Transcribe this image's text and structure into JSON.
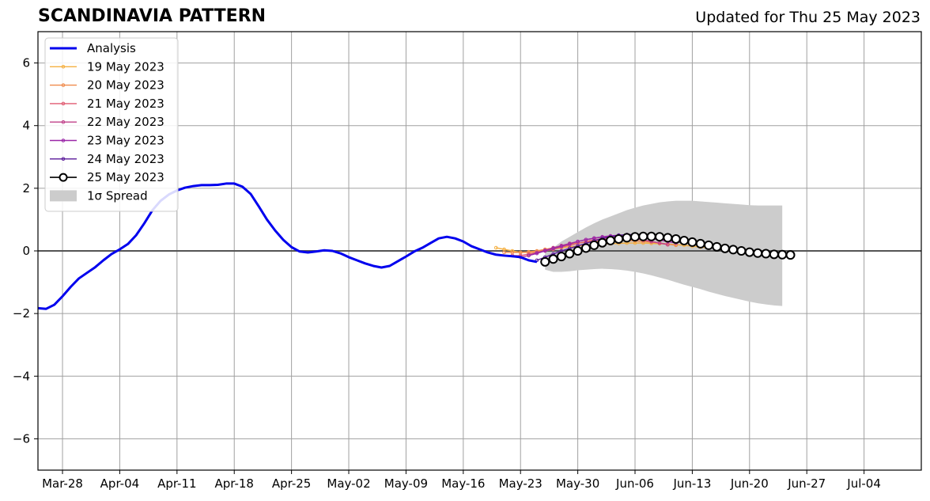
{
  "header": {
    "title": "SCANDINAVIA PATTERN",
    "updated": "Updated for Thu 25 May 2023"
  },
  "chart_data": {
    "type": "line",
    "title": "SCANDINAVIA PATTERN",
    "subtitle": "Updated for Thu 25 May 2023",
    "xlabel": "",
    "ylabel": "",
    "x_range": [
      "2023-03-25",
      "2023-07-11"
    ],
    "ylim": [
      -7,
      7
    ],
    "y_ticks": [
      -6,
      -4,
      -2,
      0,
      2,
      4,
      6
    ],
    "y_tick_labels": [
      "−6",
      "−4",
      "−2",
      "0",
      "2",
      "4",
      "6"
    ],
    "x_ticks": [
      "2023-03-28",
      "2023-04-04",
      "2023-04-11",
      "2023-04-18",
      "2023-04-25",
      "2023-05-02",
      "2023-05-09",
      "2023-05-16",
      "2023-05-23",
      "2023-05-30",
      "2023-06-06",
      "2023-06-13",
      "2023-06-20",
      "2023-06-27",
      "2023-07-04"
    ],
    "x_tick_labels": [
      "Mar-28",
      "Apr-04",
      "Apr-11",
      "Apr-18",
      "Apr-25",
      "May-02",
      "May-09",
      "May-16",
      "May-23",
      "May-30",
      "Jun-06",
      "Jun-13",
      "Jun-20",
      "Jun-27",
      "Jul-04"
    ],
    "grid": true,
    "legend_position": "top-left",
    "colors": {
      "analysis": "#0000ee",
      "spread": "#cccccc",
      "grid": "#a0a0a0",
      "zero_line": "#555555"
    },
    "analysis": {
      "name": "Analysis",
      "color": "#0000ee",
      "x": [
        "2023-03-25",
        "2023-03-26",
        "2023-03-27",
        "2023-03-28",
        "2023-03-29",
        "2023-03-30",
        "2023-03-31",
        "2023-04-01",
        "2023-04-02",
        "2023-04-03",
        "2023-04-04",
        "2023-04-05",
        "2023-04-06",
        "2023-04-07",
        "2023-04-08",
        "2023-04-09",
        "2023-04-10",
        "2023-04-11",
        "2023-04-12",
        "2023-04-13",
        "2023-04-14",
        "2023-04-15",
        "2023-04-16",
        "2023-04-17",
        "2023-04-18",
        "2023-04-19",
        "2023-04-20",
        "2023-04-21",
        "2023-04-22",
        "2023-04-23",
        "2023-04-24",
        "2023-04-25",
        "2023-04-26",
        "2023-04-27",
        "2023-04-28",
        "2023-04-29",
        "2023-04-30",
        "2023-05-01",
        "2023-05-02",
        "2023-05-03",
        "2023-05-04",
        "2023-05-05",
        "2023-05-06",
        "2023-05-07",
        "2023-05-08",
        "2023-05-09",
        "2023-05-10",
        "2023-05-11",
        "2023-05-12",
        "2023-05-13",
        "2023-05-14",
        "2023-05-15",
        "2023-05-16",
        "2023-05-17",
        "2023-05-18",
        "2023-05-19",
        "2023-05-20",
        "2023-05-21",
        "2023-05-22",
        "2023-05-23",
        "2023-05-24",
        "2023-05-25"
      ],
      "y": [
        -1.83,
        -1.85,
        -1.72,
        -1.45,
        -1.15,
        -0.88,
        -0.7,
        -0.52,
        -0.3,
        -0.1,
        0.05,
        0.22,
        0.5,
        0.88,
        1.3,
        1.6,
        1.8,
        1.93,
        2.02,
        2.07,
        2.1,
        2.1,
        2.11,
        2.15,
        2.15,
        2.05,
        1.82,
        1.42,
        1.0,
        0.65,
        0.35,
        0.12,
        -0.02,
        -0.05,
        -0.02,
        0.02,
        0.0,
        -0.08,
        -0.2,
        -0.3,
        -0.4,
        -0.48,
        -0.53,
        -0.48,
        -0.33,
        -0.18,
        -0.02,
        0.1,
        0.25,
        0.4,
        0.45,
        0.4,
        0.3,
        0.15,
        0.05,
        -0.05,
        -0.12,
        -0.15,
        -0.17,
        -0.2,
        -0.3,
        -0.35
      ]
    },
    "forecasts": [
      {
        "name": "19 May 2023",
        "color": "#f5b041",
        "x_start": "2023-05-20",
        "y": [
          0.1,
          0.05,
          0.0,
          -0.05,
          -0.05,
          -0.02,
          0.02,
          0.06,
          0.1,
          0.13,
          0.16,
          0.18,
          0.2,
          0.22,
          0.23,
          0.24,
          0.25,
          0.25,
          0.25,
          0.24,
          0.23,
          0.22,
          0.2,
          0.18,
          0.15,
          0.12,
          0.1
        ]
      },
      {
        "name": "20 May 2023",
        "color": "#f08a4b",
        "x_start": "2023-05-21",
        "y": [
          -0.05,
          -0.05,
          -0.05,
          -0.03,
          0.0,
          0.05,
          0.1,
          0.15,
          0.2,
          0.25,
          0.28,
          0.3,
          0.32,
          0.33,
          0.34,
          0.33,
          0.32,
          0.3,
          0.28,
          0.25,
          0.22,
          0.18
        ]
      },
      {
        "name": "21 May 2023",
        "color": "#e05a70",
        "x_start": "2023-05-22",
        "y": [
          -0.15,
          -0.15,
          -0.1,
          -0.05,
          0.0,
          0.05,
          0.12,
          0.18,
          0.24,
          0.3,
          0.35,
          0.38,
          0.4,
          0.42,
          0.4,
          0.38,
          0.35,
          0.3,
          0.25,
          0.2
        ]
      },
      {
        "name": "22 May 2023",
        "color": "#c0408a",
        "x_start": "2023-05-23",
        "y": [
          -0.2,
          -0.15,
          -0.05,
          0.02,
          0.1,
          0.17,
          0.24,
          0.3,
          0.36,
          0.4,
          0.44,
          0.46,
          0.46,
          0.44,
          0.4,
          0.35,
          0.3,
          0.25,
          0.2
        ]
      },
      {
        "name": "23 May 2023",
        "color": "#9b27a8",
        "x_start": "2023-05-24",
        "y": [
          -0.15,
          -0.08,
          0.0,
          0.08,
          0.15,
          0.22,
          0.3,
          0.36,
          0.41,
          0.45,
          0.48,
          0.5,
          0.5,
          0.48,
          0.45,
          0.4,
          0.35,
          0.3,
          0.25
        ]
      },
      {
        "name": "24 May 2023",
        "color": "#5a1a9a",
        "x_start": "2023-05-25",
        "y": [
          -0.3,
          -0.2,
          -0.1,
          0.0,
          0.08,
          0.16,
          0.24,
          0.32,
          0.4,
          0.45,
          0.5,
          0.52,
          0.52,
          0.5,
          0.46,
          0.42,
          0.36,
          0.3,
          0.25
        ]
      },
      {
        "name": "25 May 2023",
        "color": "#000000",
        "x_start": "2023-05-26",
        "markers": "open-circle",
        "y": [
          -0.35,
          -0.26,
          -0.18,
          -0.09,
          0.0,
          0.09,
          0.18,
          0.26,
          0.33,
          0.38,
          0.42,
          0.45,
          0.46,
          0.46,
          0.45,
          0.42,
          0.38,
          0.33,
          0.28,
          0.23,
          0.18,
          0.13,
          0.08,
          0.04,
          0.0,
          -0.04,
          -0.07,
          -0.09,
          -0.11,
          -0.12,
          -0.13
        ]
      }
    ],
    "spread": {
      "name": "1σ Spread",
      "x_start": "2023-05-26",
      "x_end": "2023-06-24",
      "upper": [
        0.0,
        0.1,
        0.3,
        0.45,
        0.6,
        0.75,
        0.88,
        1.0,
        1.1,
        1.2,
        1.3,
        1.38,
        1.45,
        1.5,
        1.55,
        1.58,
        1.6,
        1.6,
        1.6,
        1.58,
        1.56,
        1.54,
        1.52,
        1.5,
        1.48,
        1.46,
        1.45,
        1.45,
        1.45,
        1.45
      ],
      "lower": [
        -0.6,
        -0.67,
        -0.67,
        -0.65,
        -0.62,
        -0.6,
        -0.58,
        -0.57,
        -0.58,
        -0.6,
        -0.63,
        -0.67,
        -0.72,
        -0.78,
        -0.85,
        -0.92,
        -1.0,
        -1.08,
        -1.15,
        -1.22,
        -1.3,
        -1.37,
        -1.44,
        -1.5,
        -1.56,
        -1.62,
        -1.67,
        -1.71,
        -1.74,
        -1.76
      ]
    }
  }
}
